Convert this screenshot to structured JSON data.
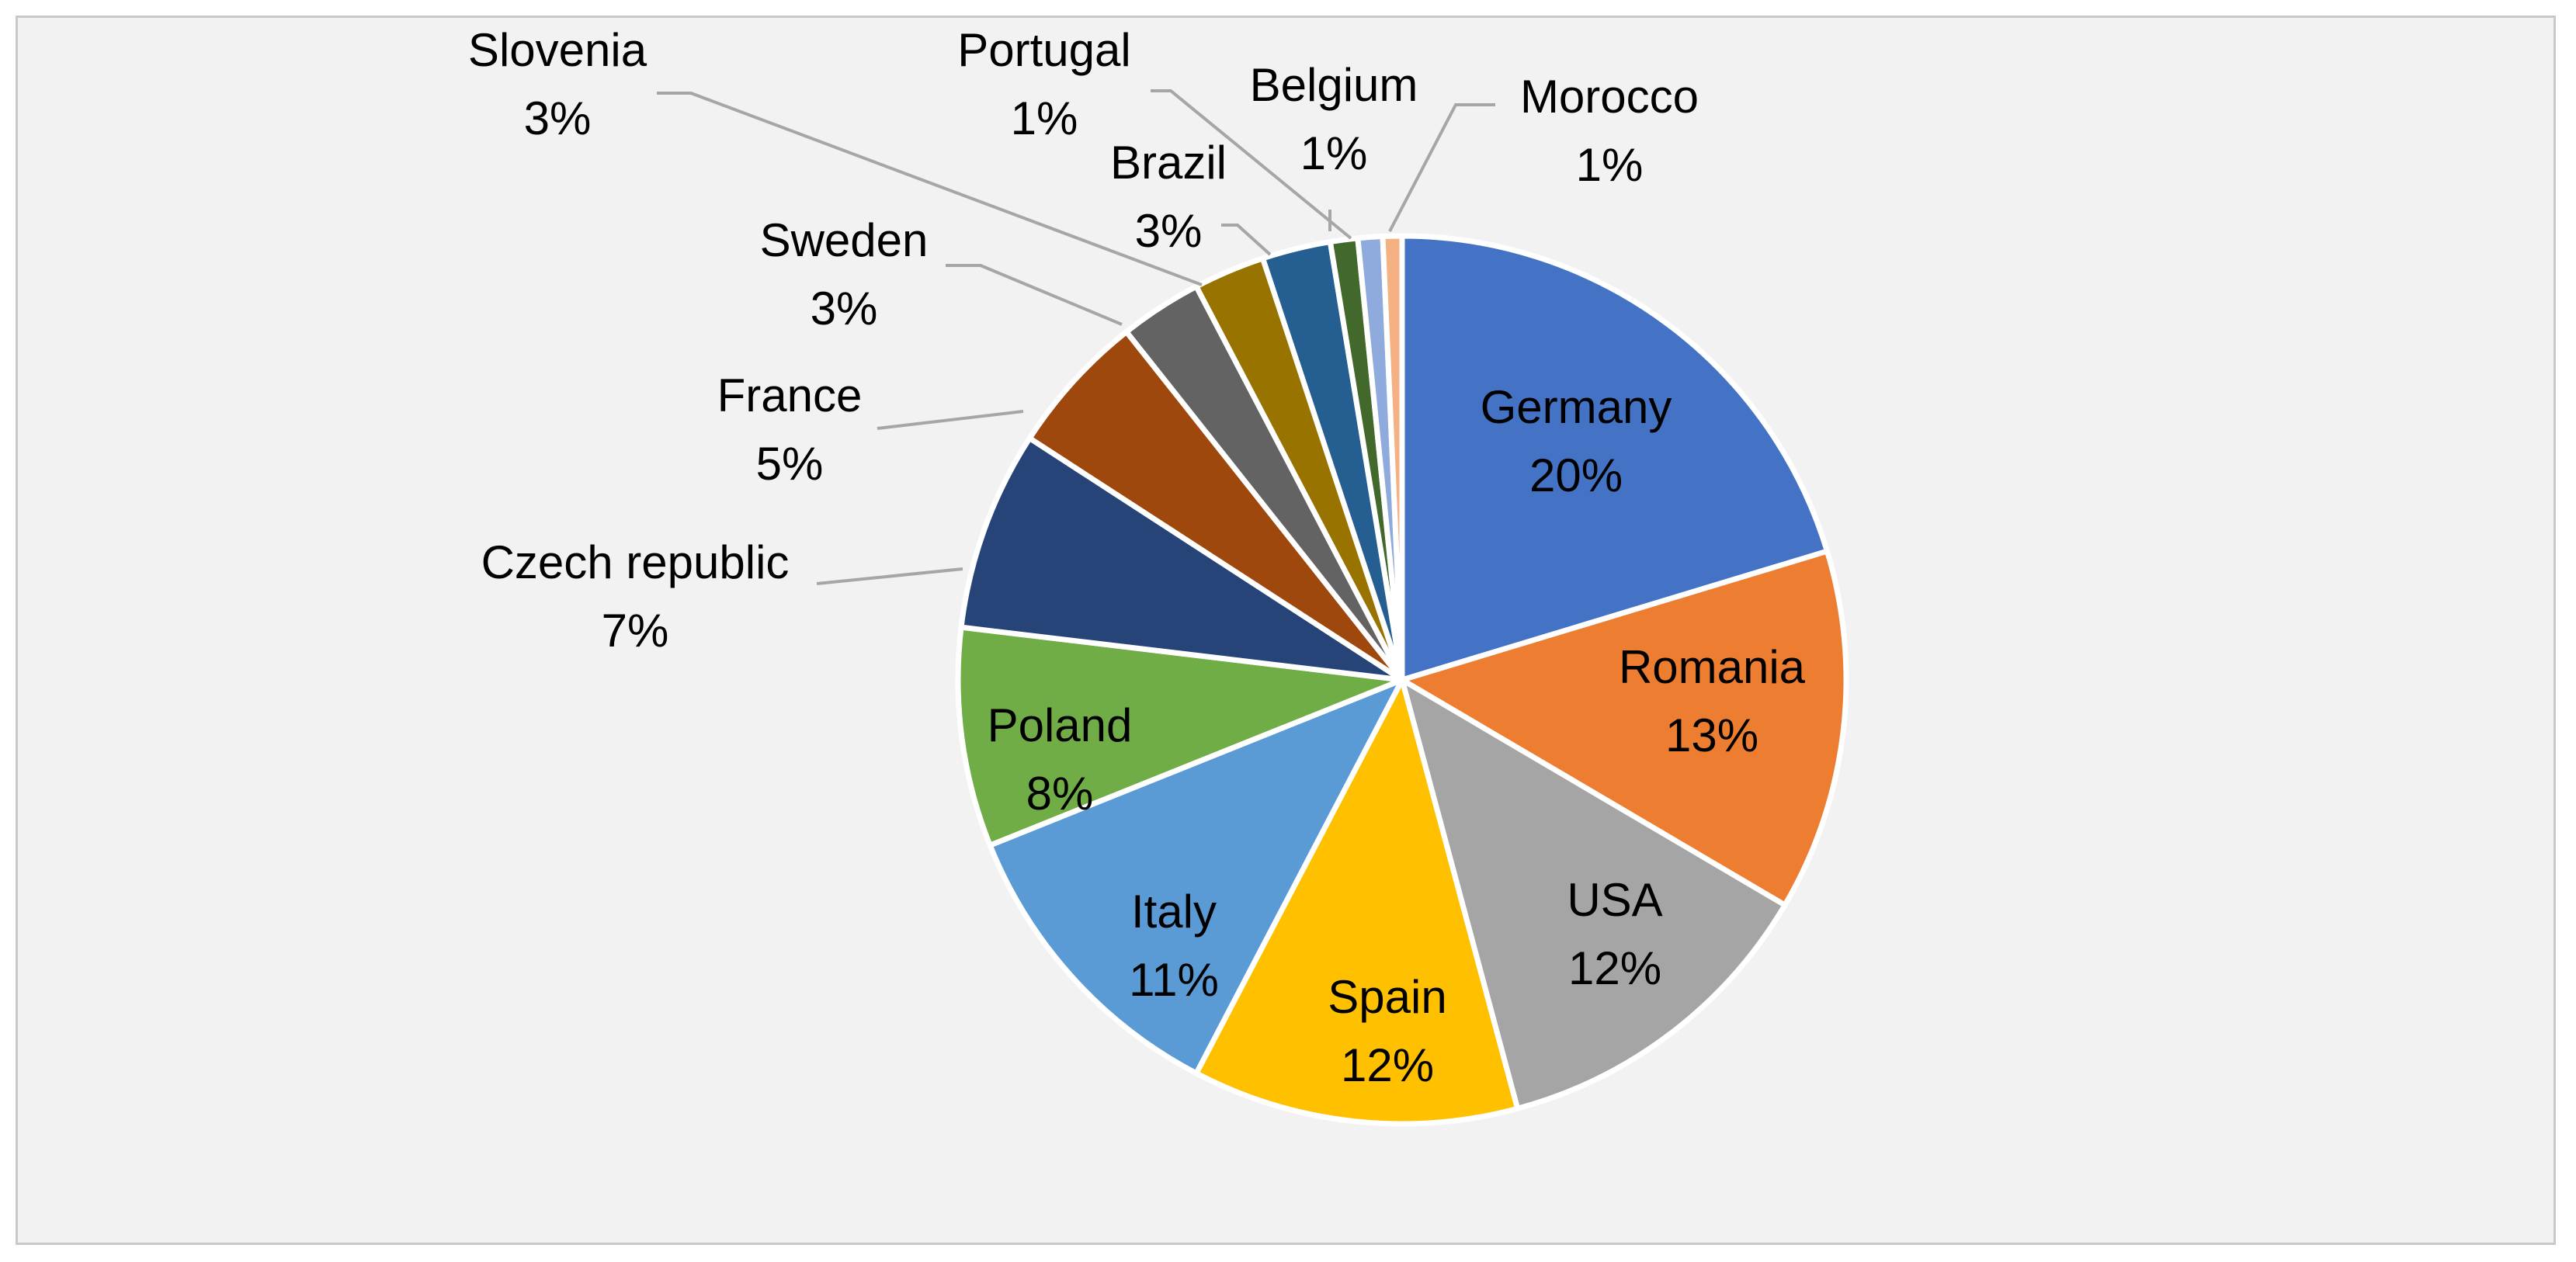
{
  "chart_data": {
    "type": "pie",
    "title": "",
    "start_angle_deg": 0,
    "direction": "clockwise",
    "slices": [
      {
        "label": "Germany",
        "pct_label": "20%",
        "value": 20.4,
        "color": "#4472c4"
      },
      {
        "label": "Romania",
        "pct_label": "13%",
        "value": 13.2,
        "color": "#ed7d31"
      },
      {
        "label": "USA",
        "pct_label": "12%",
        "value": 12.4,
        "color": "#a5a5a5"
      },
      {
        "label": "Spain",
        "pct_label": "12%",
        "value": 11.9,
        "color": "#ffc000"
      },
      {
        "label": "Italy",
        "pct_label": "11%",
        "value": 11.3,
        "color": "#5b9bd5"
      },
      {
        "label": "Poland",
        "pct_label": "8%",
        "value": 8.0,
        "color": "#70ad47"
      },
      {
        "label": "Czech republic",
        "pct_label": "7%",
        "value": 7.3,
        "color": "#264478"
      },
      {
        "label": "France",
        "pct_label": "5%",
        "value": 5.2,
        "color": "#9e480e"
      },
      {
        "label": "Sweden",
        "pct_label": "3%",
        "value": 3.0,
        "color": "#636363"
      },
      {
        "label": "Slovenia",
        "pct_label": "3%",
        "value": 2.6,
        "color": "#997300"
      },
      {
        "label": "Brazil",
        "pct_label": "3%",
        "value": 2.5,
        "color": "#255e91"
      },
      {
        "label": "Portugal",
        "pct_label": "1%",
        "value": 1.0,
        "color": "#43682b"
      },
      {
        "label": "Belgium",
        "pct_label": "1%",
        "value": 0.9,
        "color": "#8faadc"
      },
      {
        "label": "Morocco",
        "pct_label": "1%",
        "value": 0.7,
        "color": "#f4b183"
      }
    ]
  }
}
